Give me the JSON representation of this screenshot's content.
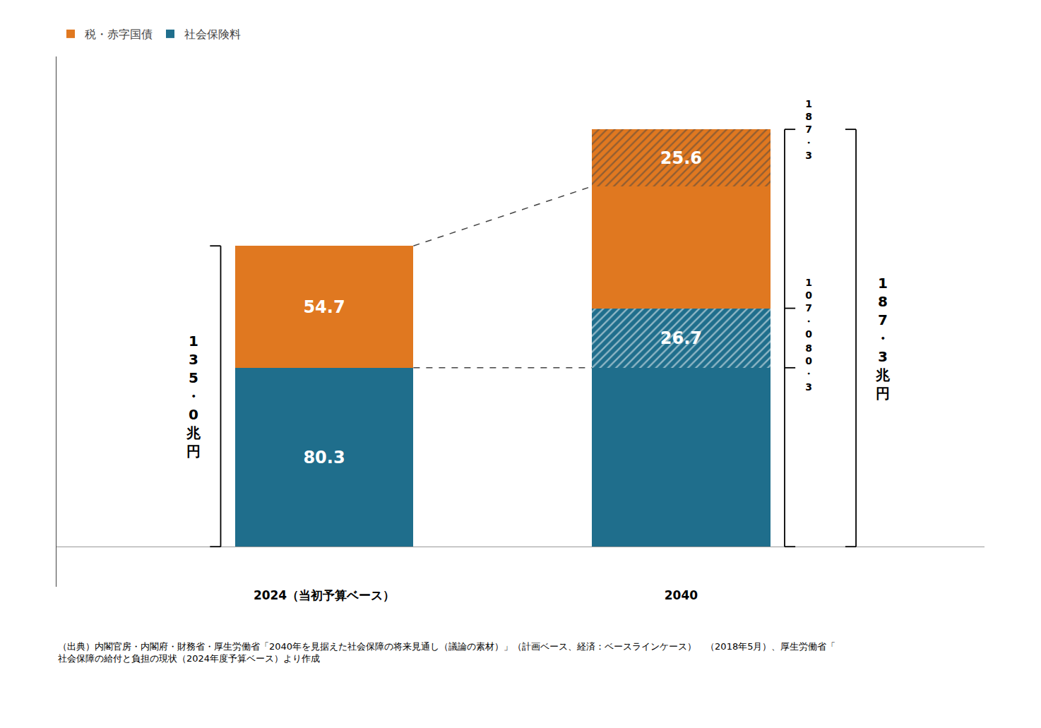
{
  "chart_data": {
    "type": "bar",
    "stacked": true,
    "categories": [
      "2024（当初予算ベース）",
      "2040"
    ],
    "series": [
      {
        "name": "社会保険料",
        "color": "#1F6E8C",
        "values": [
          80.3,
          80.3
        ],
        "value_labels": [
          "80.3",
          null
        ]
      },
      {
        "name": "社会保険料",
        "color": "#1F6E8C",
        "values": [
          null,
          26.7
        ],
        "value_labels": [
          null,
          "26.7"
        ]
      },
      {
        "name": "税・赤字国債",
        "color": "#E07820",
        "values": [
          54.7,
          54.7
        ],
        "value_labels": [
          "54.7",
          null
        ]
      },
      {
        "name": "税・赤字国債",
        "color": "#E07820",
        "values": [
          null,
          25.6
        ],
        "value_labels": [
          null,
          "25.6"
        ]
      }
    ],
    "data_labels": true,
    "ylim": [
      -18,
      220
    ],
    "tick_labels": "x",
    "grid": false,
    "legend": "upper left",
    "annotations": [
      {
        "text": "135・0兆円",
        "x": "2024（当初予算ベース）",
        "y": 135.0
      },
      {
        "text": "80・3",
        "x": "2040",
        "y": 80.3
      },
      {
        "text": "107・0",
        "x": "2040",
        "y": 107.0
      },
      {
        "text": "187・3",
        "x": "2040",
        "y": 187.3
      },
      {
        "text": "187・3兆円",
        "x": "2040",
        "y": 187.3
      }
    ],
    "caption": "（出典）内閣官房・内閣府・財務省・厚生労働省「2040年を見据えた社会保障の将来見通し（議論の素材）」（計画ベース、経済：ベースラインケース）　（2018年5月）、厚生労働省「社会保障の給付と負担の現状（2024年度予算ベース）より作成"
  }
}
